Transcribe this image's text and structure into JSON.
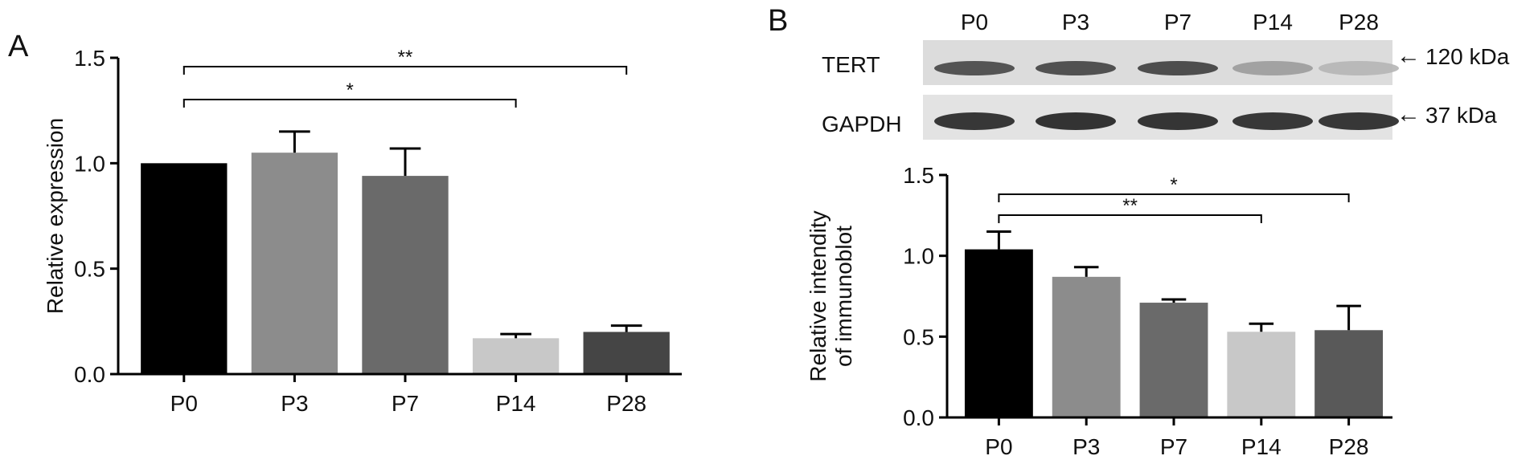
{
  "panel_a": {
    "letter": "A"
  },
  "panel_b": {
    "letter": "B"
  },
  "blot": {
    "lanes": [
      "P0",
      "P3",
      "P7",
      "P14",
      "P28"
    ],
    "rows": [
      {
        "label": "TERT",
        "marker": "120 kDa",
        "band_intensity": [
          0.78,
          0.8,
          0.82,
          0.35,
          0.22
        ]
      },
      {
        "label": "GAPDH",
        "marker": "37 kDa",
        "band_intensity": [
          0.95,
          0.97,
          0.96,
          0.94,
          0.95
        ]
      }
    ],
    "arrow_glyph": "←"
  },
  "chart_data": [
    {
      "type": "bar",
      "panel": "A",
      "title": "",
      "xlabel": "",
      "ylabel": "Relative expression",
      "ylim": [
        0,
        1.5
      ],
      "yticks": [
        "0.0",
        "0.5",
        "1.0",
        "1.5"
      ],
      "categories": [
        "P0",
        "P3",
        "P7",
        "P14",
        "P28"
      ],
      "values": [
        1.0,
        1.05,
        0.94,
        0.17,
        0.2
      ],
      "errors": [
        0.0,
        0.1,
        0.13,
        0.02,
        0.03
      ],
      "colors": [
        "#000000",
        "#8c8c8c",
        "#6a6a6a",
        "#c8c8c8",
        "#454545"
      ],
      "significance": [
        {
          "from": 0,
          "to": 3,
          "label": "*"
        },
        {
          "from": 0,
          "to": 4,
          "label": "**"
        }
      ]
    },
    {
      "type": "bar",
      "panel": "B",
      "title": "",
      "xlabel": "",
      "ylabel": [
        "Relative intendity",
        "of immunoblot"
      ],
      "ylim": [
        0,
        1.5
      ],
      "yticks": [
        "0.0",
        "0.5",
        "1.0",
        "1.5"
      ],
      "categories": [
        "P0",
        "P3",
        "P7",
        "P14",
        "P28"
      ],
      "values": [
        1.04,
        0.87,
        0.71,
        0.53,
        0.54
      ],
      "errors": [
        0.11,
        0.06,
        0.02,
        0.05,
        0.15
      ],
      "colors": [
        "#000000",
        "#8c8c8c",
        "#6a6a6a",
        "#c8c8c8",
        "#595959"
      ],
      "significance": [
        {
          "from": 0,
          "to": 3,
          "label": "**"
        },
        {
          "from": 0,
          "to": 4,
          "label": "*"
        }
      ]
    }
  ]
}
